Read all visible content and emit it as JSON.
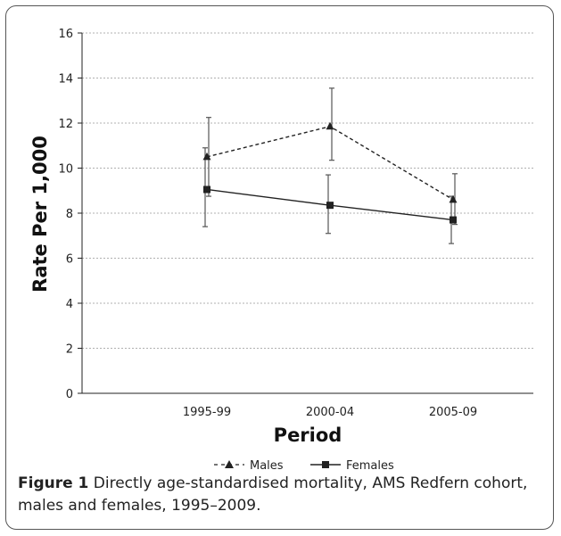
{
  "chart_data": {
    "type": "line",
    "categories": [
      "1995-99",
      "2000-04",
      "2005-09"
    ],
    "series": [
      {
        "name": "Males",
        "values": [
          10.5,
          11.85,
          8.6
        ],
        "err_low": [
          8.75,
          10.35,
          7.5
        ],
        "err_high": [
          12.25,
          13.55,
          9.75
        ],
        "style": "dashed",
        "marker": "triangle"
      },
      {
        "name": "Females",
        "values": [
          9.05,
          8.35,
          7.7
        ],
        "err_low": [
          7.4,
          7.1,
          6.65
        ],
        "err_high": [
          10.9,
          9.7,
          8.75
        ],
        "style": "solid",
        "marker": "square"
      }
    ],
    "xlabel": "Period",
    "ylabel": "Rate Per 1,000",
    "ylim": [
      0,
      16
    ],
    "yticks": [
      "0",
      "2",
      "4",
      "6",
      "8",
      "10",
      "12",
      "14",
      "16"
    ],
    "grid": true,
    "legend": "bottom"
  },
  "caption": {
    "label": "Figure 1",
    "text": " Directly age-standardised mortality, AMS Redfern cohort, males and females, 1995–2009."
  },
  "colors": {
    "line": "#222222",
    "grid": "#b0b0b0",
    "errorbar": "#555555"
  }
}
